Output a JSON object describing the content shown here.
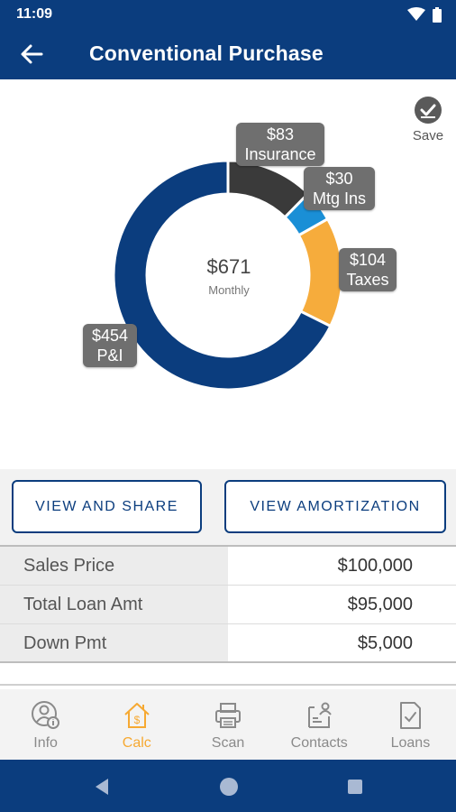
{
  "status_bar": {
    "time": "11:09"
  },
  "header": {
    "title": "Conventional Purchase",
    "back_icon": "arrow-left-icon"
  },
  "save": {
    "label": "Save",
    "icon": "check-circle-icon"
  },
  "colors": {
    "primary": "#0b3d7e",
    "accent": "#f6a932",
    "insurance": "#3a3a3a",
    "mtg_ins": "#1a8fd6",
    "taxes": "#f6ac3c",
    "pi": "#0b3d7e"
  },
  "chart_data": {
    "type": "pie",
    "center": {
      "value": "$671",
      "label": "Monthly"
    },
    "slices": [
      {
        "name": "Insurance",
        "value": 83,
        "label_value": "$83",
        "label_name": "Insurance"
      },
      {
        "name": "Mtg Ins",
        "value": 30,
        "label_value": "$30",
        "label_name": "Mtg Ins"
      },
      {
        "name": "Taxes",
        "value": 104,
        "label_value": "$104",
        "label_name": "Taxes"
      },
      {
        "name": "P&I",
        "value": 454,
        "label_value": "$454",
        "label_name": "P&I"
      }
    ]
  },
  "actions": {
    "view_share": "VIEW AND SHARE",
    "view_amortization": "VIEW AMORTIZATION"
  },
  "summary": [
    {
      "label": "Sales Price",
      "value": "$100,000"
    },
    {
      "label": "Total Loan Amt",
      "value": "$95,000"
    },
    {
      "label": "Down Pmt",
      "value": "$5,000"
    }
  ],
  "bottom_nav": [
    {
      "label": "Info",
      "icon": "user-info-icon"
    },
    {
      "label": "Calc",
      "icon": "house-dollar-icon",
      "active": true
    },
    {
      "label": "Scan",
      "icon": "printer-icon"
    },
    {
      "label": "Contacts",
      "icon": "contacts-icon"
    },
    {
      "label": "Loans",
      "icon": "document-check-icon"
    }
  ]
}
